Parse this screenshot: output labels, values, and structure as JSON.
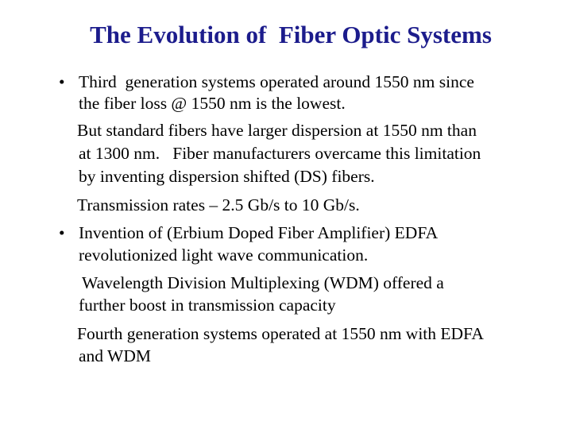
{
  "slide": {
    "title": "The Evolution of  Fiber Optic Systems",
    "bullets": [
      {
        "paragraphs": [
          {
            "lines": [
              "Third  generation systems operated around 1550 nm since",
              "the fiber loss @ 1550 nm is the lowest."
            ]
          },
          {
            "lines": [
              "But standard fibers have larger dispersion at 1550 nm than",
              "at 1300 nm.   Fiber manufacturers overcame this limitation",
              "by inventing dispersion shifted (DS) fibers."
            ]
          },
          {
            "lines": [
              "Transmission rates – 2.5 Gb/s to 10 Gb/s."
            ]
          }
        ]
      },
      {
        "paragraphs": [
          {
            "lines": [
              "Invention of (Erbium Doped Fiber Amplifier) EDFA",
              "revolutionized light wave communication."
            ]
          },
          {
            "lines": [
              "Wavelength Division Multiplexing (WDM) offered a",
              "further boost in transmission capacity"
            ]
          },
          {
            "lines": [
              "Fourth generation systems operated at 1550 nm with EDFA",
              "and WDM"
            ]
          }
        ]
      }
    ]
  }
}
